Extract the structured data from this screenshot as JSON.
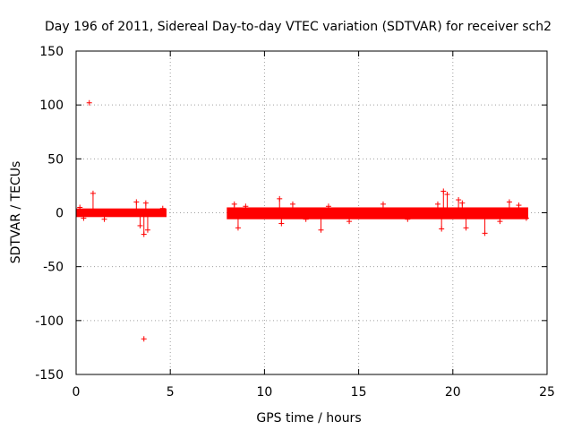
{
  "chart_data": {
    "type": "scatter",
    "title": "Day 196 of 2011, Sidereal Day-to-day VTEC variation (SDTVAR) for receiver sch2",
    "xlabel": "GPS time / hours",
    "ylabel": "SDTVAR / TECUs",
    "xlim": [
      0,
      25
    ],
    "ylim": [
      -150,
      150
    ],
    "xticks": [
      "0",
      "5",
      "10",
      "15",
      "20",
      "25"
    ],
    "yticks": [
      "150",
      "100",
      "50",
      "0",
      "-50",
      "-100",
      "-150"
    ],
    "grid": true,
    "marker": "+",
    "color": "#ff0000",
    "bands": [
      {
        "x": [
          0.0,
          4.8
        ],
        "y_low": -4,
        "y_high": 4
      },
      {
        "x": [
          8.0,
          24.0
        ],
        "y_low": -6,
        "y_high": 5
      }
    ],
    "spikes": [
      {
        "x": 0.2,
        "y": 5
      },
      {
        "x": 0.4,
        "y": -5
      },
      {
        "x": 0.9,
        "y": 18
      },
      {
        "x": 1.5,
        "y": -6
      },
      {
        "x": 3.2,
        "y": 10
      },
      {
        "x": 3.4,
        "y": -12
      },
      {
        "x": 3.6,
        "y": -20
      },
      {
        "x": 3.7,
        "y": 9
      },
      {
        "x": 3.8,
        "y": -16
      },
      {
        "x": 4.6,
        "y": 4
      },
      {
        "x": 8.4,
        "y": 8
      },
      {
        "x": 8.6,
        "y": -14
      },
      {
        "x": 9.0,
        "y": 6
      },
      {
        "x": 10.8,
        "y": 13
      },
      {
        "x": 10.9,
        "y": -10
      },
      {
        "x": 11.5,
        "y": 8
      },
      {
        "x": 12.2,
        "y": -6
      },
      {
        "x": 13.0,
        "y": -16
      },
      {
        "x": 13.4,
        "y": 6
      },
      {
        "x": 14.5,
        "y": -8
      },
      {
        "x": 16.3,
        "y": 8
      },
      {
        "x": 17.6,
        "y": -6
      },
      {
        "x": 19.2,
        "y": 8
      },
      {
        "x": 19.5,
        "y": 20
      },
      {
        "x": 19.7,
        "y": 17
      },
      {
        "x": 19.4,
        "y": -15
      },
      {
        "x": 20.3,
        "y": 12
      },
      {
        "x": 20.5,
        "y": 9
      },
      {
        "x": 20.7,
        "y": -14
      },
      {
        "x": 21.7,
        "y": -19
      },
      {
        "x": 22.5,
        "y": -8
      },
      {
        "x": 23.0,
        "y": 10
      },
      {
        "x": 23.5,
        "y": 7
      },
      {
        "x": 23.9,
        "y": -5
      }
    ],
    "outliers": [
      {
        "x": 0.7,
        "y": 102
      },
      {
        "x": 3.6,
        "y": -117
      }
    ]
  }
}
